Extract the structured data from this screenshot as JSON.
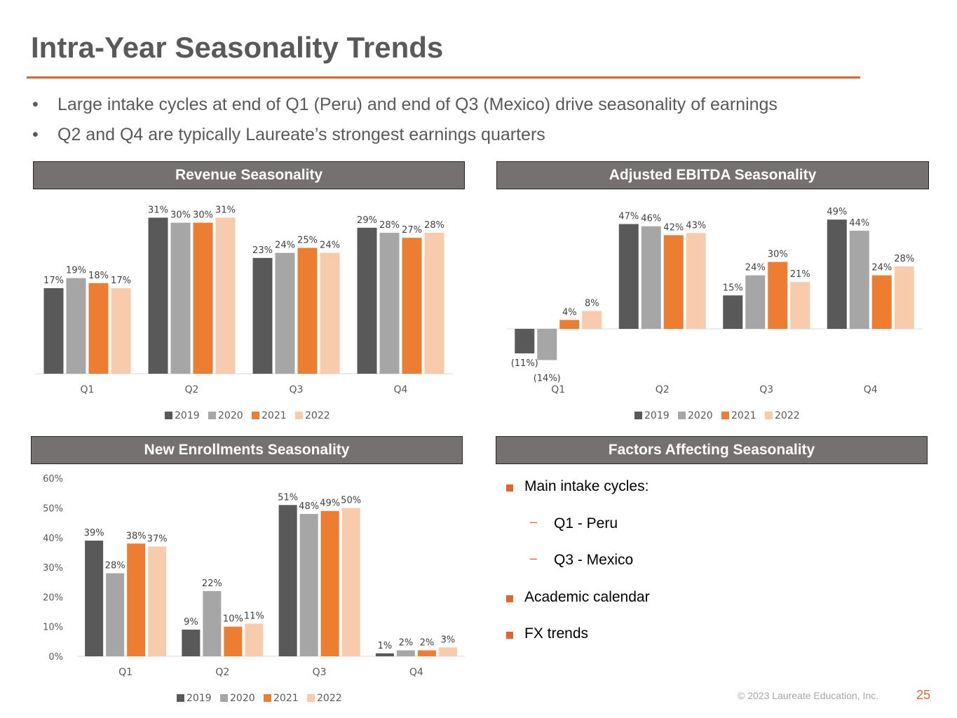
{
  "title": "Intra-Year Seasonality Trends",
  "bullets": [
    "Large intake cycles at end of Q1 (Peru) and end of Q3 (Mexico) drive seasonality of earnings",
    "Q2 and Q4 are typically Laureate’s strongest earnings quarters"
  ],
  "bullet_symbol": "•",
  "panels": {
    "revenue": "Revenue Seasonality",
    "ebitda": "Adjusted EBITDA Seasonality",
    "enrollments": "New Enrollments Seasonality",
    "factors": "Factors Affecting Seasonality"
  },
  "colors": {
    "accent": "#e8622a",
    "header_bg": "#767171",
    "s2019": "#595959",
    "s2020": "#a6a6a6",
    "s2021": "#ed7d31",
    "s2022": "#f8cbad"
  },
  "chart_data": [
    {
      "id": "revenue",
      "type": "bar",
      "title": "Revenue Seasonality",
      "categories": [
        "Q1",
        "Q2",
        "Q3",
        "Q4"
      ],
      "series": [
        {
          "name": "2019",
          "values": [
            17,
            31,
            23,
            29
          ],
          "labels": [
            "17%",
            "31%",
            "23%",
            "29%"
          ]
        },
        {
          "name": "2020",
          "values": [
            19,
            30,
            24,
            28
          ],
          "labels": [
            "19%",
            "30%",
            "24%",
            "28%"
          ]
        },
        {
          "name": "2021",
          "values": [
            18,
            30,
            25,
            27
          ],
          "labels": [
            "18%",
            "30%",
            "25%",
            "27%"
          ]
        },
        {
          "name": "2022",
          "values": [
            17,
            31,
            24,
            28
          ],
          "labels": [
            "17%",
            "31%",
            "24%",
            "28%"
          ]
        }
      ],
      "ylim": [
        0,
        31
      ],
      "show_y_axis": false,
      "legend": "bottom"
    },
    {
      "id": "ebitda",
      "type": "bar",
      "title": "Adjusted EBITDA Seasonality",
      "categories": [
        "Q1",
        "Q2",
        "Q3",
        "Q4"
      ],
      "series": [
        {
          "name": "2019",
          "values": [
            -11,
            47,
            15,
            49
          ],
          "labels": [
            "(11%)",
            "47%",
            "15%",
            "49%"
          ]
        },
        {
          "name": "2020",
          "values": [
            -14,
            46,
            24,
            44
          ],
          "labels": [
            "(14%)",
            "46%",
            "24%",
            "44%"
          ]
        },
        {
          "name": "2021",
          "values": [
            4,
            42,
            30,
            24
          ],
          "labels": [
            "4%",
            "42%",
            "30%",
            "24%"
          ]
        },
        {
          "name": "2022",
          "values": [
            8,
            43,
            21,
            28
          ],
          "labels": [
            "8%",
            "43%",
            "21%",
            "28%"
          ]
        }
      ],
      "ylim": [
        -14,
        49
      ],
      "show_y_axis": false,
      "legend": "bottom"
    },
    {
      "id": "enrollments",
      "type": "bar",
      "title": "New Enrollments Seasonality",
      "categories": [
        "Q1",
        "Q2",
        "Q3",
        "Q4"
      ],
      "series": [
        {
          "name": "2019",
          "values": [
            39,
            9,
            51,
            1
          ],
          "labels": [
            "39%",
            "9%",
            "51%",
            "1%"
          ]
        },
        {
          "name": "2020",
          "values": [
            28,
            22,
            48,
            2
          ],
          "labels": [
            "28%",
            "22%",
            "48%",
            "2%"
          ]
        },
        {
          "name": "2021",
          "values": [
            38,
            10,
            49,
            2
          ],
          "labels": [
            "38%",
            "10%",
            "49%",
            "2%"
          ]
        },
        {
          "name": "2022",
          "values": [
            37,
            11,
            50,
            3
          ],
          "labels": [
            "37%",
            "11%",
            "50%",
            "3%"
          ]
        }
      ],
      "ylim": [
        0,
        60
      ],
      "y_ticks": [
        "0%",
        "10%",
        "20%",
        "30%",
        "40%",
        "50%",
        "60%"
      ],
      "show_y_axis": true,
      "legend": "bottom"
    }
  ],
  "factors": [
    {
      "level": 1,
      "text": "Main intake cycles:"
    },
    {
      "level": 2,
      "text": "Q1 - Peru"
    },
    {
      "level": 2,
      "text": "Q3 - Mexico"
    },
    {
      "level": 1,
      "text": "Academic calendar"
    },
    {
      "level": 1,
      "text": "FX trends"
    }
  ],
  "sub_bullet_symbol": "–",
  "footer": "© 2023 Laureate Education, Inc.",
  "page_number": "25"
}
